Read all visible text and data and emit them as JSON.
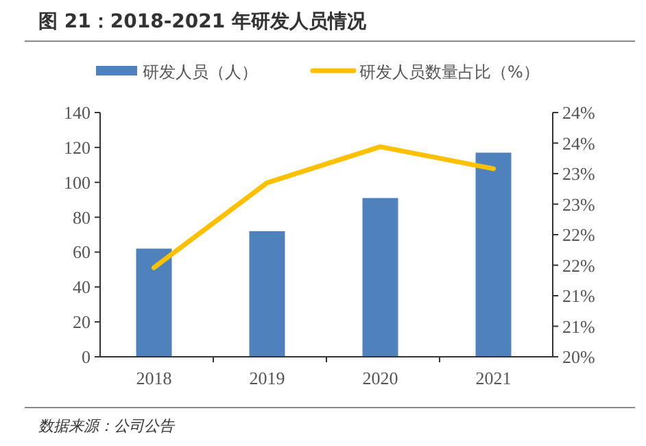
{
  "chart_data": {
    "type": "bar",
    "title": "图 21：2018-2021 年研发人员情况",
    "annotations": [
      "数据来源：公司公告"
    ],
    "categories": [
      "2018",
      "2019",
      "2020",
      "2021"
    ],
    "series": [
      {
        "name": "研发人员（人）",
        "color": "#4f81bd",
        "values": [
          62,
          72,
          91,
          117
        ]
      },
      {
        "name": "研发人员数量占比（%）",
        "type": "line",
        "axis": "y2",
        "color": "#ffc000",
        "values": [
          21.46,
          22.85,
          23.44,
          23.08
        ]
      }
    ],
    "ylim": [
      0,
      140
    ],
    "yticks": [
      0,
      20,
      40,
      60,
      80,
      100,
      120,
      140
    ],
    "y2lim": [
      20,
      24
    ],
    "y2ticks": [
      {
        "value": 20,
        "label": "20%"
      },
      {
        "value": 20.5,
        "label": "21%"
      },
      {
        "value": 21,
        "label": "21%"
      },
      {
        "value": 21.5,
        "label": "22%"
      },
      {
        "value": 22,
        "label": "22%"
      },
      {
        "value": 22.5,
        "label": "23%"
      },
      {
        "value": 23,
        "label": "23%"
      },
      {
        "value": 23.5,
        "label": "24%"
      },
      {
        "value": 24,
        "label": "24%"
      }
    ],
    "legend": "top",
    "grid": false
  }
}
